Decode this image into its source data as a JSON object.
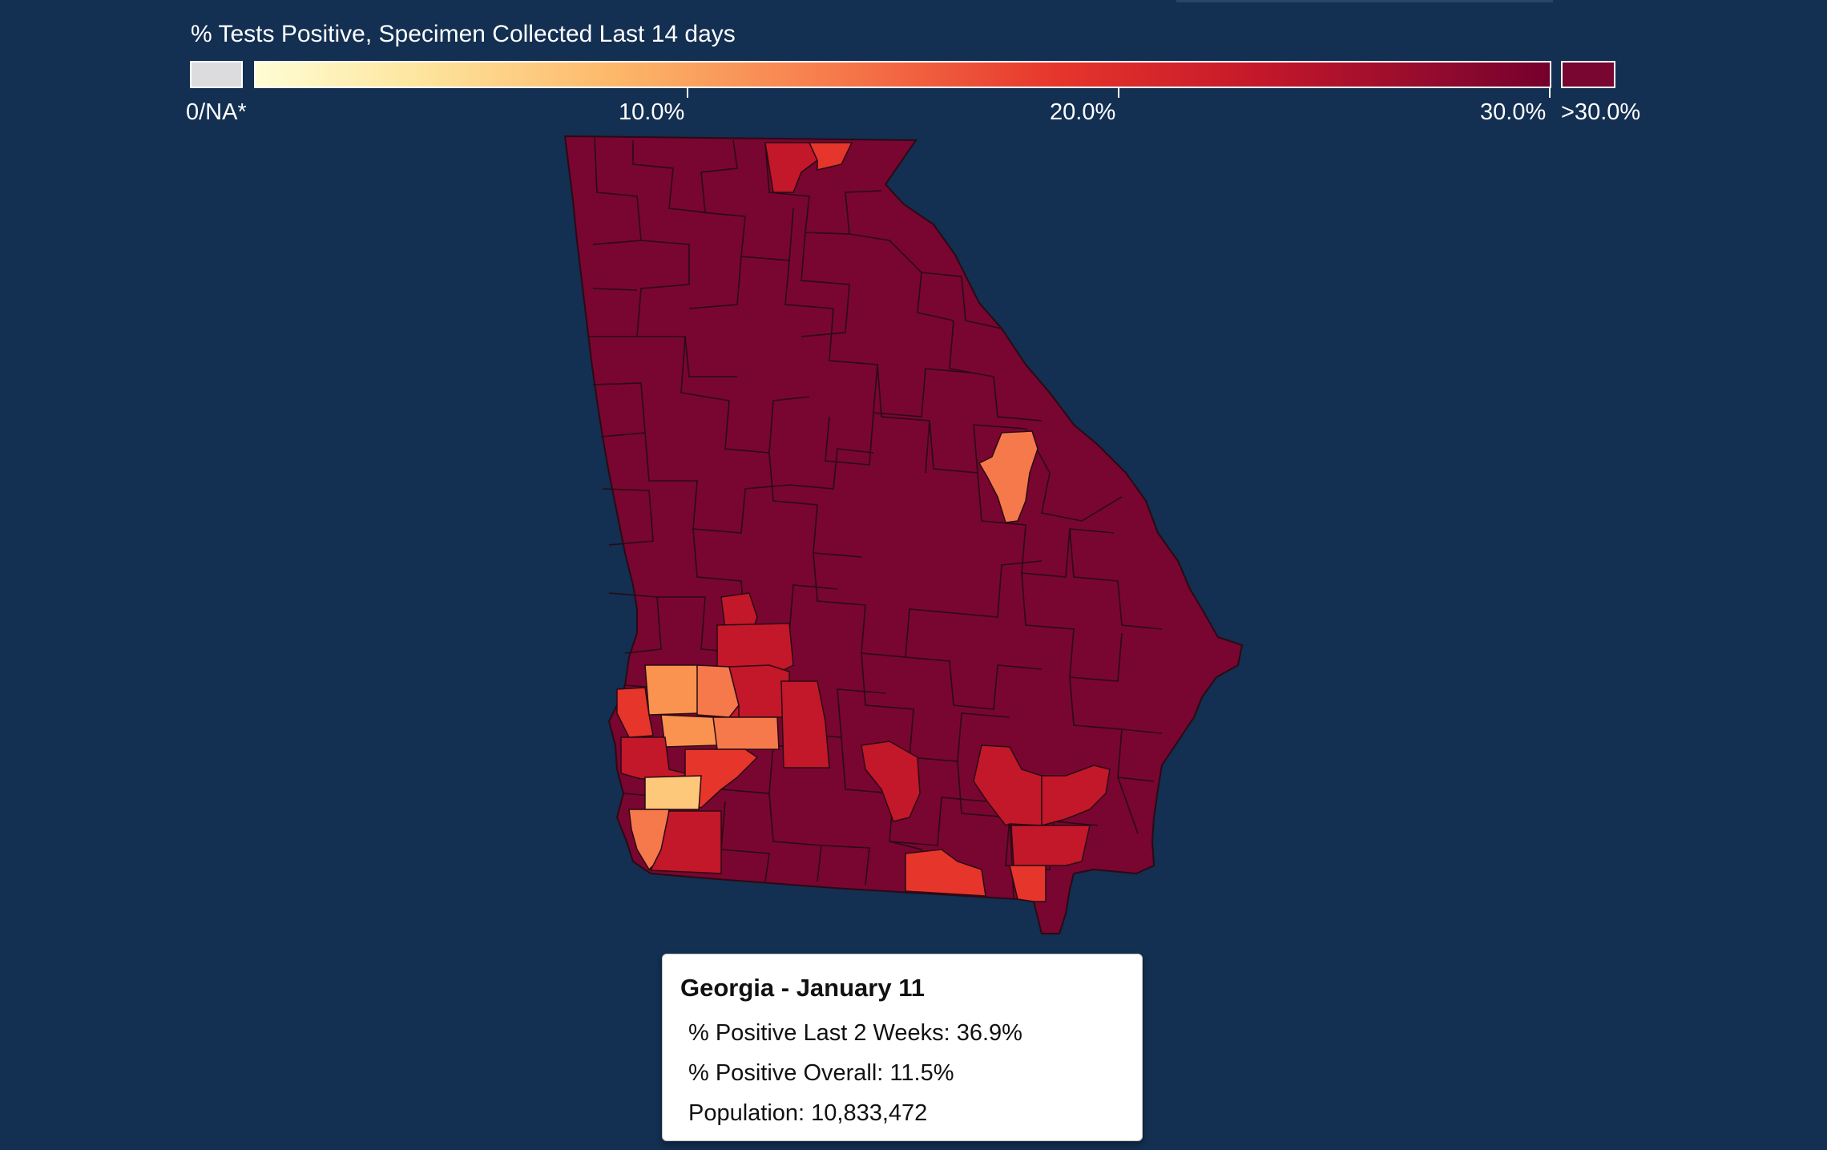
{
  "legend": {
    "title": "% Tests Positive, Specimen Collected Last 14 days",
    "na_label": "0/NA*",
    "ticks": [
      "10.0%",
      "20.0%",
      "30.0%"
    ],
    "max_label": ">30.0%",
    "colors": {
      "na": "#dcdcde",
      "scale_low": "#fffdd4",
      "scale_mid": "#f6794b",
      "scale_high": "#75002c",
      "max": "#780630"
    }
  },
  "map": {
    "region": "Georgia",
    "base_color": "#780630",
    "border_color": "#2a0a14",
    "highlight_colors": [
      "#c3172a",
      "#e6352b",
      "#f6794b",
      "#f9934f",
      "#fdc87a"
    ]
  },
  "tooltip": {
    "title": "Georgia - January 11",
    "positive_2wk": "% Positive Last 2 Weeks: 36.9%",
    "positive_overall": "% Positive Overall: 11.5%",
    "population": "Population: 10,833,472"
  }
}
